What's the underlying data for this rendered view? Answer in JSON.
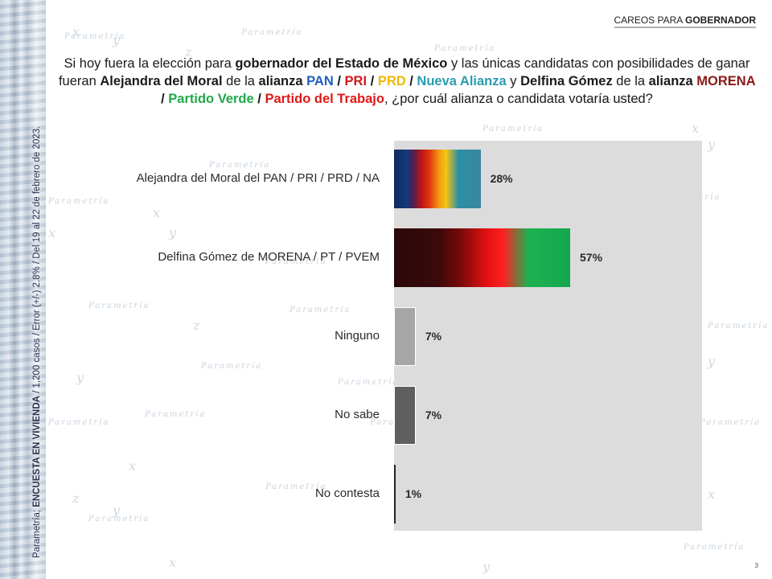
{
  "header": {
    "prefix": "CAREOS PARA ",
    "emph": "GOBERNADOR"
  },
  "side_caption": {
    "prefix": "Parametría; ",
    "emph": "ENCUESTA EN VIVIENDA",
    "rest": " / 1,200 casos / Error (+/-) 2.8% / Del 19 al 22 de febrero de 2023."
  },
  "question": {
    "p1": "Si hoy fuera la elección para ",
    "b1": "gobernador del Estado de México",
    "p2": " y las únicas candidatas con posibilidades de ganar fueran ",
    "b2": "Alejandra del Moral",
    "p3": " de la ",
    "b3": "alianza",
    "pan": "PAN",
    "sep1": " / ",
    "pri": "PRI",
    "sep2": " / ",
    "prd": "PRD",
    "sep3": " / ",
    "na": "Nueva Alianza",
    "p4": " y ",
    "b4": "Delfina Gómez",
    "p5": " de la ",
    "b5": "alianza",
    "morena": "MORENA",
    "sep4": " / ",
    "verde": "Partido Verde",
    "sep5": " / ",
    "pt": "Partido del Trabajo",
    "p6": ", ¿por cuál alianza o candidata votaría usted?"
  },
  "watermark": "Parametría",
  "page_number": "3",
  "colors": {
    "plot_background": "#dcdcdc",
    "ninguno": "#a6a6a6",
    "no_sabe": "#5f5f5f",
    "no_contesta": "#222222"
  },
  "chart_data": {
    "type": "bar",
    "orientation": "horizontal",
    "categories": [
      "Alejandra del Moral del PAN / PRI / PRD / NA",
      "Delfina Gómez de MORENA / PT / PVEM",
      "Ninguno",
      "No sabe",
      "No contesta"
    ],
    "values": [
      28,
      57,
      7,
      7,
      1
    ],
    "value_labels": [
      "28%",
      "57%",
      "7%",
      "7%",
      "1%"
    ],
    "xlim": [
      0,
      100
    ],
    "grid": false,
    "legend": "none"
  }
}
